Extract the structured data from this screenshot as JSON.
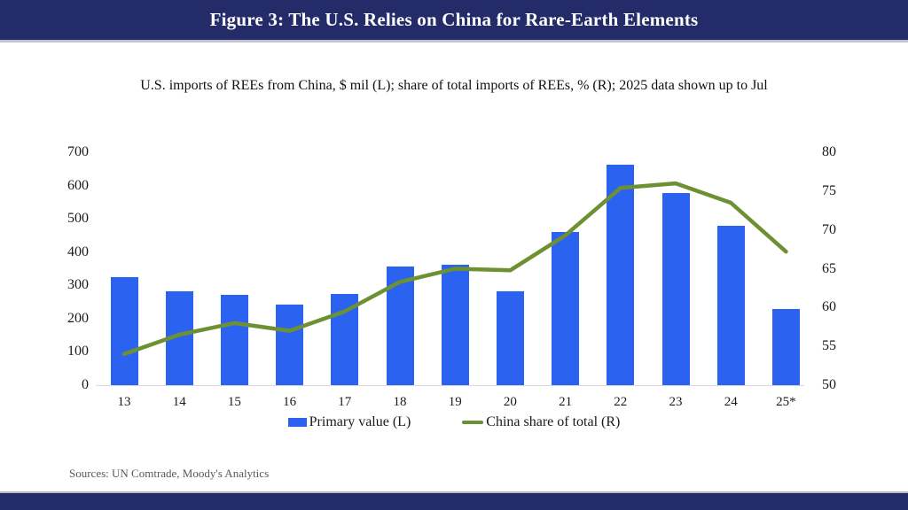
{
  "header": {
    "title": "Figure 3: The U.S. Relies on China for Rare-Earth Elements"
  },
  "subtitle": "U.S. imports of REEs from China, $ mil (L); share of total imports of REEs, % (R); 2025 data shown up to Jul",
  "source": "Sources: UN Comtrade, Moody's Analytics",
  "colors": {
    "band_navy": "#232c69",
    "bar_blue": "#2b63f0",
    "line_green": "#6d9132",
    "axis_gray": "#d9d9d9",
    "text_black": "#1a1a1a",
    "source_gray": "#595959"
  },
  "chart_data": {
    "type": "bar",
    "title": "Figure 3: The U.S. Relies on China for Rare-Earth Elements",
    "subtitle": "U.S. imports of REEs from China, $ mil (L); share of total imports of REEs, % (R); 2025 data shown up to Jul",
    "categories": [
      "13",
      "14",
      "15",
      "16",
      "17",
      "18",
      "19",
      "20",
      "21",
      "22",
      "23",
      "24",
      "25*"
    ],
    "series": [
      {
        "name": "Primary value (L)",
        "type": "bar",
        "axis": "left",
        "color": "#2b63f0",
        "values": [
          325,
          283,
          272,
          243,
          275,
          357,
          362,
          283,
          460,
          663,
          578,
          478,
          228
        ]
      },
      {
        "name": "China share of total (R)",
        "type": "line",
        "axis": "right",
        "color": "#6d9132",
        "values": [
          54,
          56.5,
          58,
          57,
          59.5,
          63.3,
          65,
          64.8,
          69.3,
          75.4,
          76,
          73.5,
          67.2
        ]
      }
    ],
    "left_axis": {
      "label": "$ mil",
      "min": 0,
      "max": 700,
      "ticks": [
        0,
        100,
        200,
        300,
        400,
        500,
        600,
        700
      ]
    },
    "right_axis": {
      "label": "%",
      "min": 50,
      "max": 80,
      "ticks": [
        50,
        55,
        60,
        65,
        70,
        75,
        80
      ]
    },
    "grid": false,
    "legend_position": "bottom"
  }
}
